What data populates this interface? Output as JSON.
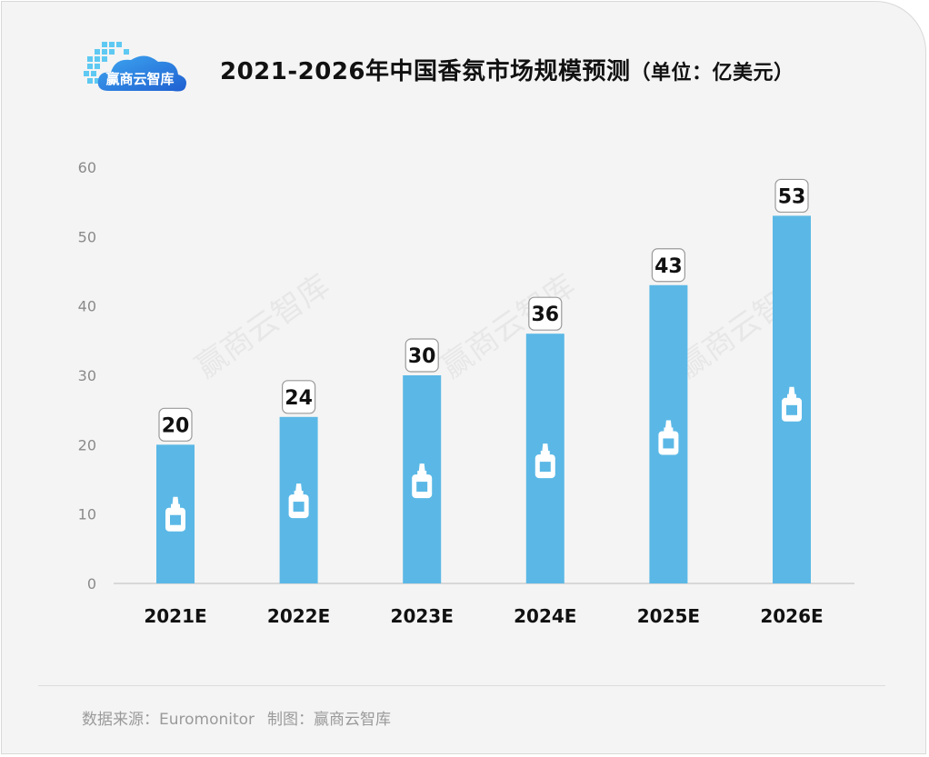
{
  "header": {
    "logo_text": "赢商云智库",
    "title": "2021-2026年中国香氛市场规模预测",
    "title_unit": "（单位：亿美元）"
  },
  "chart_data": {
    "type": "bar",
    "categories": [
      "2021E",
      "2022E",
      "2023E",
      "2024E",
      "2025E",
      "2026E"
    ],
    "values": [
      20,
      24,
      30,
      36,
      43,
      53
    ],
    "data_labels": [
      "20",
      "24",
      "30",
      "36",
      "43",
      "53"
    ],
    "ylim": [
      0,
      60
    ],
    "yticks": [
      0,
      10,
      20,
      30,
      40,
      50,
      60
    ],
    "grid": false,
    "bar_color": "#5bb8e6",
    "bar_icon": "bottle-icon"
  },
  "footer": {
    "source": "数据来源：Euromonitor",
    "credit": "制图：赢商云智库"
  },
  "watermark": "赢商云智库"
}
